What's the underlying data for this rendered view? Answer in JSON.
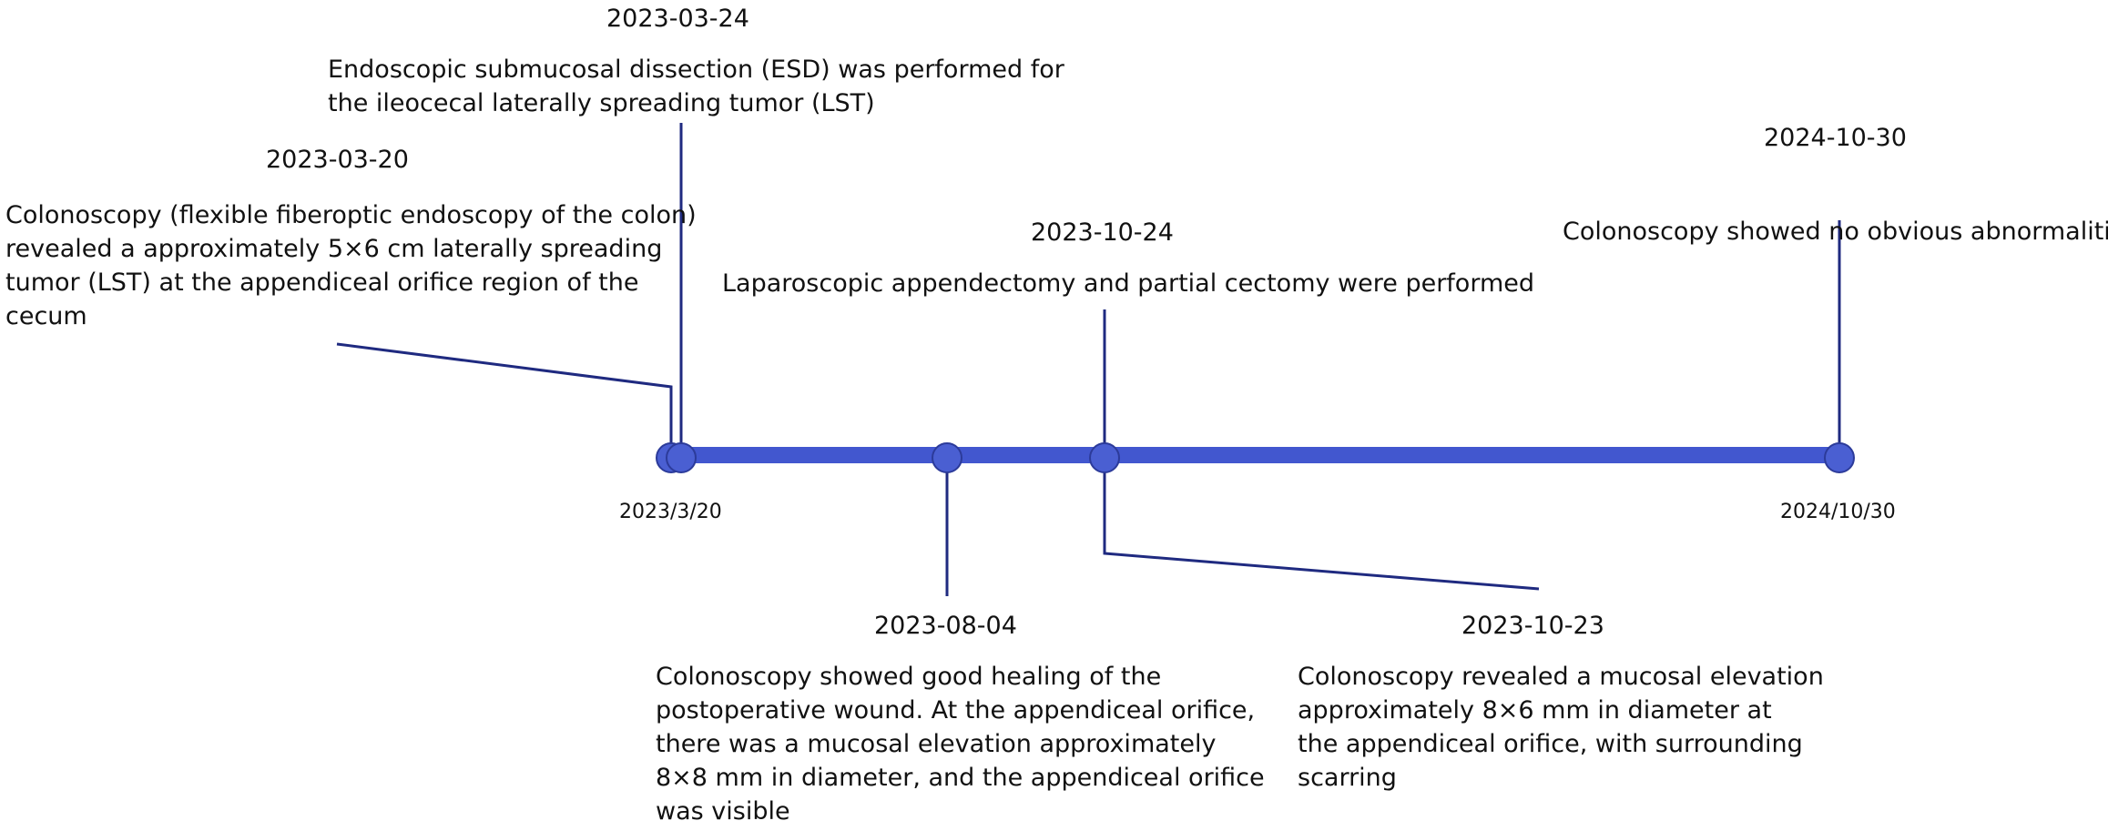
{
  "colors": {
    "axis": "#4257cf",
    "axis_edge": "#2c3b9a",
    "connector": "#1f2a80",
    "text": "#111111"
  },
  "axis": {
    "start_label": "2023/3/20",
    "end_label": "2024/10/30"
  },
  "events": [
    {
      "id": "e1",
      "date": "2023-03-20",
      "lines": [
        "Colonoscopy (flexible fiberoptic endoscopy of the colon)",
        "revealed a approximately 5×6 cm laterally spreading",
        "tumor (LST) at the appendiceal orifice region of the",
        "cecum"
      ]
    },
    {
      "id": "e2",
      "date": "2023-03-24",
      "lines": [
        "Endoscopic submucosal dissection (ESD) was performed for",
        "the ileocecal laterally spreading tumor (LST)"
      ]
    },
    {
      "id": "e3",
      "date": "2023-08-04",
      "lines": [
        "Colonoscopy showed good healing of the",
        "postoperative wound. At the appendiceal orifice,",
        "there was a mucosal elevation approximately",
        "8×8 mm in diameter, and the appendiceal orifice",
        "was visible"
      ]
    },
    {
      "id": "e4",
      "date": "2023-10-23",
      "lines": [
        "Colonoscopy revealed a mucosal elevation",
        "approximately 8×6 mm in diameter at",
        "the appendiceal orifice, with surrounding",
        "scarring"
      ]
    },
    {
      "id": "e5",
      "date": "2023-10-24",
      "lines": [
        "Laparoscopic appendectomy and partial cectomy were performed"
      ]
    },
    {
      "id": "e6",
      "date": "2024-10-30",
      "lines": [
        "Colonoscopy showed no obvious abnormalities"
      ]
    }
  ]
}
